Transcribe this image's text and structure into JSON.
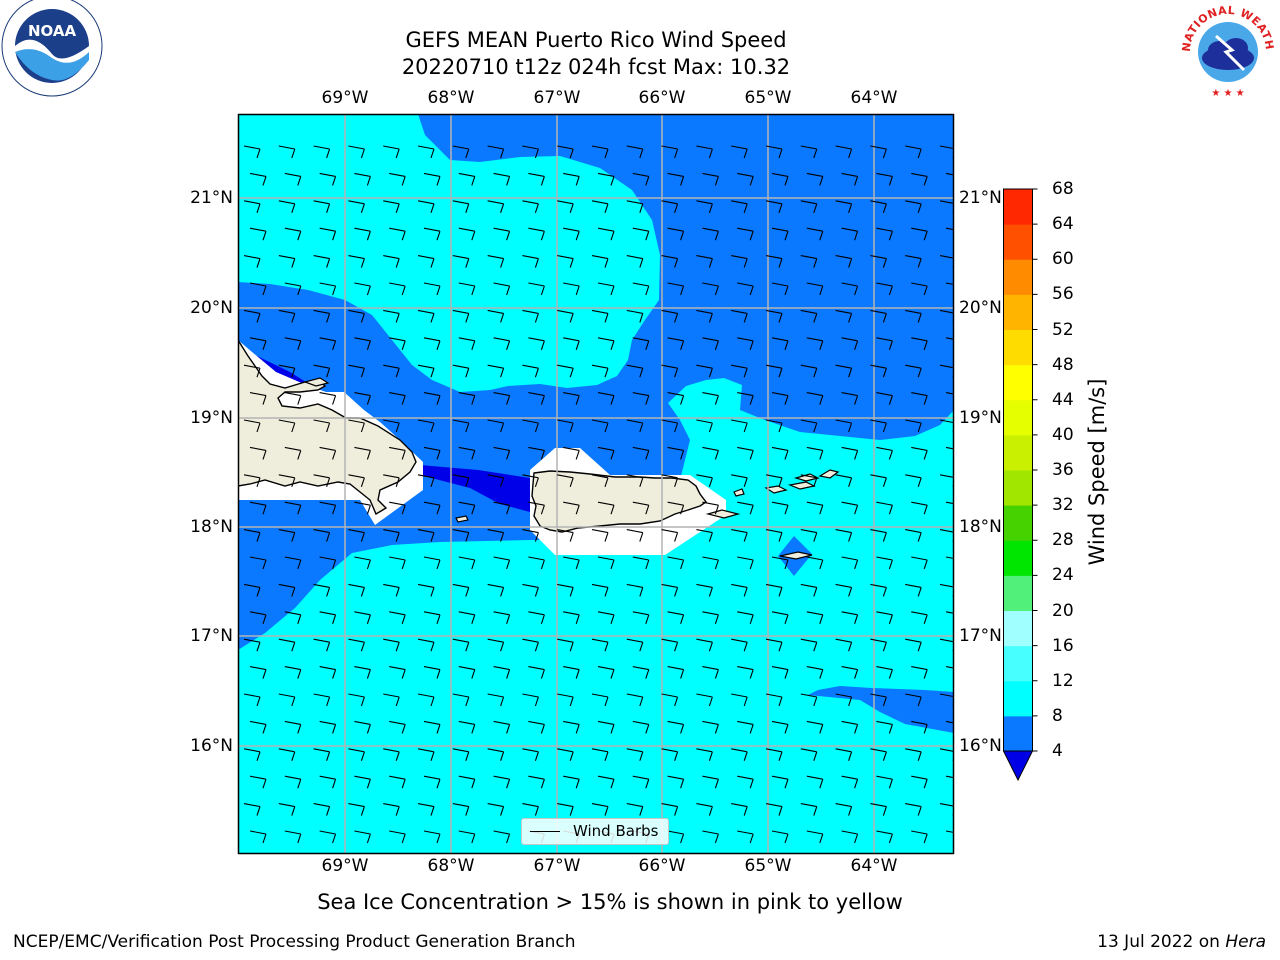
{
  "header": {
    "title_line1": "GEFS MEAN Puerto Rico Wind Speed",
    "title_line2": "20220710 t12z 024h fcst   Max: 10.32"
  },
  "logos": {
    "noaa_text": "NOAA",
    "nws_text": "NATIONAL WEATHER SERVICE"
  },
  "map": {
    "lon_labels": [
      "69°W",
      "68°W",
      "67°W",
      "66°W",
      "65°W",
      "64°W"
    ],
    "lat_labels": [
      "21°N",
      "20°N",
      "19°N",
      "18°N",
      "17°N",
      "16°N"
    ],
    "regions": [
      "Hispaniola",
      "Puerto Rico",
      "Virgin Islands",
      "St. Croix"
    ],
    "field_colors": {
      "ocean_4_8": "#0a78ff",
      "ocean_8_12": "#00ffff",
      "ocean_below_4": "#0000e8",
      "land": "#efeddc",
      "coast": "#000000",
      "grid": "#b4b4b4"
    },
    "legend_label": "Wind Barbs"
  },
  "colorbar": {
    "label": "Wind Speed [m/s]",
    "ticks": [
      "68",
      "64",
      "60",
      "56",
      "52",
      "48",
      "44",
      "40",
      "36",
      "32",
      "28",
      "24",
      "20",
      "16",
      "12",
      "8",
      "4"
    ],
    "colors": [
      "#0000e6",
      "#0a78ff",
      "#00ffff",
      "#48ffff",
      "#a0ffff",
      "#50f07a",
      "#00e600",
      "#46d200",
      "#a0e600",
      "#c8f000",
      "#e6ff00",
      "#ffff00",
      "#ffdc00",
      "#ffb400",
      "#ff8c00",
      "#ff5000",
      "#ff2800",
      "#ff0000"
    ]
  },
  "footnote": "Sea Ice Concentration > 15% is shown in pink to yellow",
  "footer": {
    "left": "NCEP/EMC/Verification Post Processing Product Generation Branch",
    "right_prefix": "13 Jul 2022 on ",
    "right_host": "Hera"
  }
}
